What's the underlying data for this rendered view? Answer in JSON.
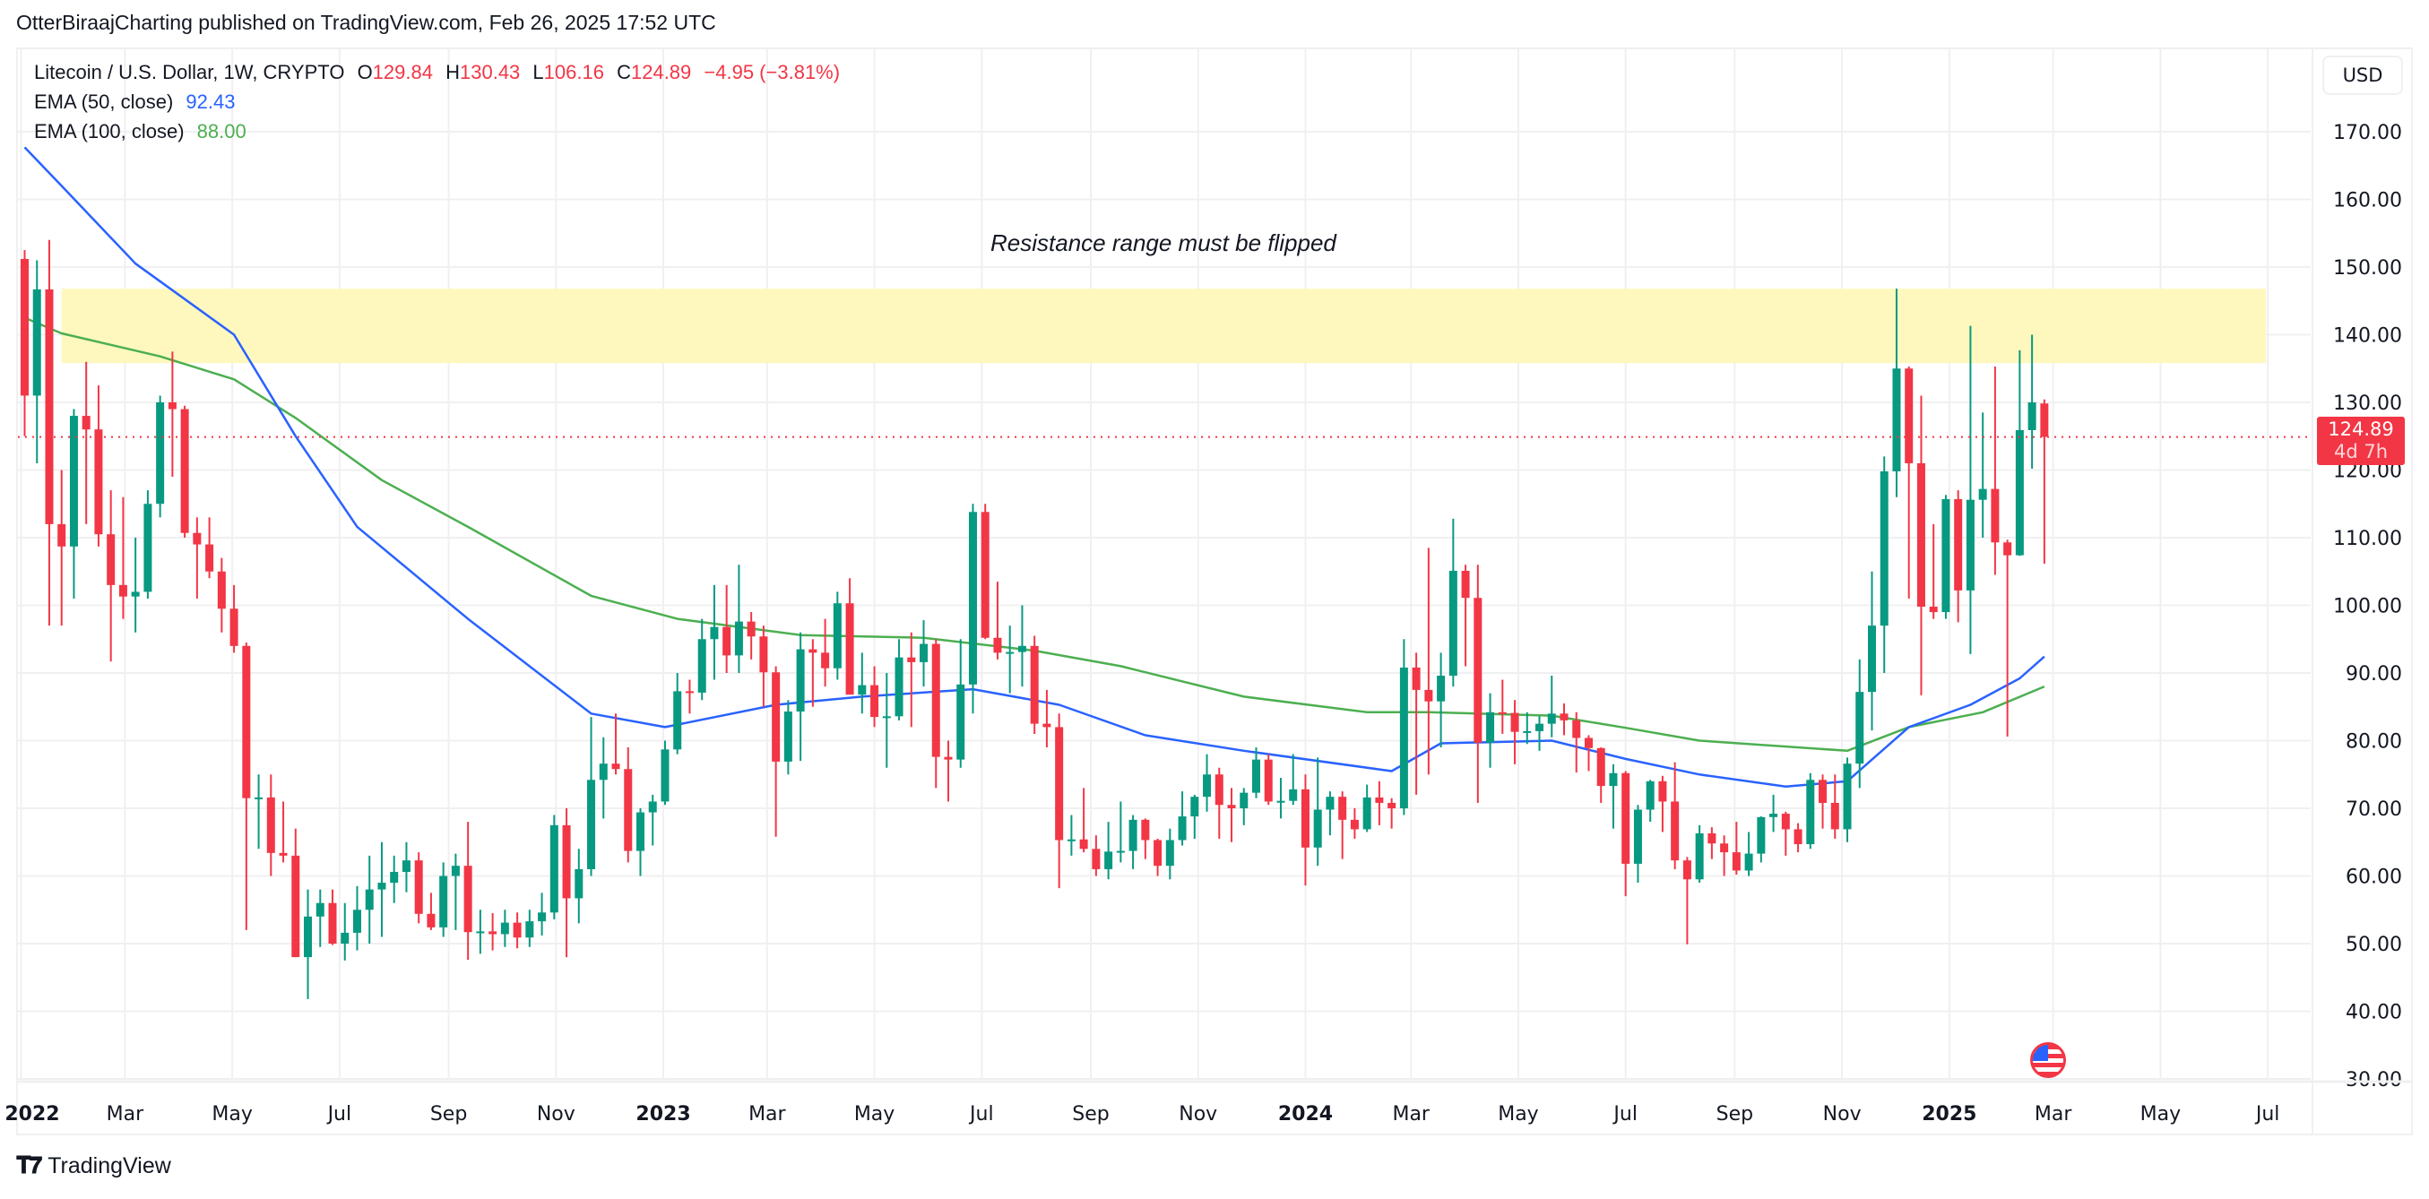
{
  "header": {
    "published": "OtterBiraajCharting published on TradingView.com, Feb 26, 2025 17:52 UTC"
  },
  "legend": {
    "symbol": "Litecoin / U.S. Dollar, 1W, CRYPTO",
    "o_label": "O",
    "o": "129.84",
    "h_label": "H",
    "h": "130.43",
    "l_label": "L",
    "l": "106.16",
    "c_label": "C",
    "c": "124.89",
    "change": "−4.95 (−3.81%)",
    "ema50_label": "EMA (50, close)",
    "ema50": "92.43",
    "ema100_label": "EMA (100, close)",
    "ema100": "88.00"
  },
  "price_axis": {
    "currency": "USD",
    "last_price": "124.89",
    "countdown": "4d 7h"
  },
  "annotation": "Resistance range must be flipped",
  "footer": {
    "brand": "TradingView"
  },
  "colors": {
    "up": "#089981",
    "down": "#F23645",
    "ema50": "#2962FF",
    "ema100": "#4CAF50",
    "zone": "#FFF8BE",
    "grid": "#F0F0F2"
  },
  "icons": {
    "event": "us-flag-economic-event-icon",
    "logo": "tradingview-logo-icon"
  },
  "chart_data": {
    "type": "candlestick",
    "interval": "1W",
    "first_week": "2022-01-03",
    "ylim": [
      30,
      170
    ],
    "y_scale": "linear",
    "grid": true,
    "y_ticks": [
      "30.00",
      "40.00",
      "50.00",
      "60.00",
      "70.00",
      "80.00",
      "90.00",
      "100.00",
      "110.00",
      "120.00",
      "130.00",
      "140.00",
      "150.00",
      "160.00",
      "170.00"
    ],
    "x_ticks": [
      {
        "date": "2022-01-01",
        "label": "2022",
        "bold": true
      },
      {
        "date": "2022-03-01",
        "label": "Mar"
      },
      {
        "date": "2022-05-01",
        "label": "May"
      },
      {
        "date": "2022-07-01",
        "label": "Jul"
      },
      {
        "date": "2022-09-01",
        "label": "Sep"
      },
      {
        "date": "2022-11-01",
        "label": "Nov"
      },
      {
        "date": "2023-01-01",
        "label": "2023",
        "bold": true
      },
      {
        "date": "2023-03-01",
        "label": "Mar"
      },
      {
        "date": "2023-05-01",
        "label": "May"
      },
      {
        "date": "2023-07-01",
        "label": "Jul"
      },
      {
        "date": "2023-09-01",
        "label": "Sep"
      },
      {
        "date": "2023-11-01",
        "label": "Nov"
      },
      {
        "date": "2024-01-01",
        "label": "2024",
        "bold": true
      },
      {
        "date": "2024-03-01",
        "label": "Mar"
      },
      {
        "date": "2024-05-01",
        "label": "May"
      },
      {
        "date": "2024-07-01",
        "label": "Jul"
      },
      {
        "date": "2024-09-01",
        "label": "Sep"
      },
      {
        "date": "2024-11-01",
        "label": "Nov"
      },
      {
        "date": "2025-01-01",
        "label": "2025",
        "bold": true
      },
      {
        "date": "2025-03-01",
        "label": "Mar"
      },
      {
        "date": "2025-05-01",
        "label": "May"
      },
      {
        "date": "2025-07-01",
        "label": "Jul"
      }
    ],
    "candle_fields": [
      "open",
      "high",
      "low",
      "close"
    ],
    "candles": [
      [
        151.2,
        152.5,
        125,
        131
      ],
      [
        131,
        151,
        121,
        146.7
      ],
      [
        146.7,
        154,
        97,
        112
      ],
      [
        112,
        120,
        97,
        108.7
      ],
      [
        108.7,
        129,
        101,
        128
      ],
      [
        128,
        136,
        112,
        126
      ],
      [
        126,
        132.5,
        108.7,
        110.5
      ],
      [
        110.5,
        117,
        91.7,
        103
      ],
      [
        103,
        116,
        98,
        101.3
      ],
      [
        101.3,
        110,
        96,
        102
      ],
      [
        102,
        117,
        101,
        115
      ],
      [
        115,
        131,
        113,
        130
      ],
      [
        130,
        137.5,
        119,
        129
      ],
      [
        129,
        129.5,
        110,
        110.7
      ],
      [
        110.7,
        113,
        101,
        109
      ],
      [
        109,
        113,
        104,
        105
      ],
      [
        105,
        107,
        96,
        99.5
      ],
      [
        99.5,
        103,
        93,
        94
      ],
      [
        94,
        94.5,
        52,
        71.5
      ],
      [
        71.6,
        75,
        64,
        71.6
      ],
      [
        71.6,
        75,
        60,
        63.4
      ],
      [
        63.4,
        71,
        62,
        63
      ],
      [
        63,
        67,
        48,
        48
      ],
      [
        48,
        58,
        41.8,
        54
      ],
      [
        54,
        58,
        49.5,
        56
      ],
      [
        56,
        58,
        49.8,
        50
      ],
      [
        50,
        56,
        47.5,
        51.6
      ],
      [
        51.6,
        58.5,
        49,
        55
      ],
      [
        55,
        63,
        50,
        58
      ],
      [
        58,
        65,
        51,
        59
      ],
      [
        59,
        63,
        56,
        60.6
      ],
      [
        60.6,
        65,
        57.6,
        62.3
      ],
      [
        62.3,
        63.5,
        53,
        54.4
      ],
      [
        54.4,
        57.5,
        52,
        52.4
      ],
      [
        52.4,
        62,
        51,
        60
      ],
      [
        60,
        63.3,
        52,
        61.5
      ],
      [
        61.5,
        68,
        47.6,
        51.7
      ],
      [
        51.7,
        55,
        48.5,
        51.8
      ],
      [
        51.8,
        54.5,
        49,
        51.4
      ],
      [
        51.4,
        55,
        49.5,
        53.1
      ],
      [
        53.1,
        54.6,
        49.3,
        50.9
      ],
      [
        50.9,
        55,
        49.5,
        53.3
      ],
      [
        53.3,
        57.5,
        51.2,
        54.6
      ],
      [
        54.6,
        69,
        53.6,
        67.5
      ],
      [
        67.5,
        70,
        48,
        56.7
      ],
      [
        56.7,
        64,
        53,
        61
      ],
      [
        61,
        83.5,
        60,
        74.2
      ],
      [
        74.2,
        80.5,
        68.5,
        76.6
      ],
      [
        76.6,
        84,
        75,
        75.8
      ],
      [
        75.8,
        79,
        62,
        63.7
      ],
      [
        63.7,
        70,
        60,
        69.4
      ],
      [
        69.4,
        72,
        64.5,
        71
      ],
      [
        71,
        80,
        70.5,
        78.7
      ],
      [
        78.7,
        90,
        78,
        87.3
      ],
      [
        87.3,
        89,
        84,
        87.1
      ],
      [
        87.1,
        98,
        86,
        95
      ],
      [
        95,
        103,
        89,
        96.8
      ],
      [
        96.8,
        103,
        90,
        92.6
      ],
      [
        92.6,
        106,
        90,
        97.6
      ],
      [
        97.6,
        99,
        92,
        95.4
      ],
      [
        95.4,
        97,
        85,
        90.1
      ],
      [
        90.1,
        91,
        65.8,
        76.9
      ],
      [
        76.9,
        86,
        75,
        84.3
      ],
      [
        84.3,
        96,
        77,
        93.5
      ],
      [
        93.5,
        95,
        85,
        93
      ],
      [
        93,
        98,
        88,
        90.7
      ],
      [
        90.7,
        102,
        89,
        100.3
      ],
      [
        100.3,
        104,
        88,
        86.8
      ],
      [
        86.8,
        93,
        84,
        88.2
      ],
      [
        88.2,
        91,
        82,
        83.5
      ],
      [
        83.5,
        90,
        76,
        83.6
      ],
      [
        83.6,
        95,
        83,
        92.3
      ],
      [
        92.3,
        96,
        82,
        91.6
      ],
      [
        91.6,
        97.8,
        88,
        94.3
      ],
      [
        94.3,
        95,
        73,
        77.6
      ],
      [
        77.6,
        80,
        71,
        77.2
      ],
      [
        77.2,
        95,
        76,
        88.3
      ],
      [
        88.3,
        115,
        84,
        113.8
      ],
      [
        113.8,
        115,
        95,
        95.2
      ],
      [
        95.2,
        103.5,
        92,
        93
      ],
      [
        93,
        97,
        87,
        93.1
      ],
      [
        93.1,
        100,
        88,
        94
      ],
      [
        94,
        95.5,
        81,
        82.5
      ],
      [
        82.5,
        87.5,
        79,
        82
      ],
      [
        82,
        84,
        58.2,
        65.3
      ],
      [
        65.3,
        69,
        63,
        65.4
      ],
      [
        65.4,
        73,
        63.5,
        64
      ],
      [
        64,
        66,
        60,
        61
      ],
      [
        61,
        68,
        59.5,
        63.6
      ],
      [
        63.6,
        71,
        62,
        63.7
      ],
      [
        63.7,
        69,
        61,
        68.3
      ],
      [
        68.3,
        68.5,
        62.5,
        65.3
      ],
      [
        65.3,
        65.5,
        60,
        61.5
      ],
      [
        61.5,
        67,
        59.5,
        65.3
      ],
      [
        65.3,
        72.5,
        64.5,
        68.8
      ],
      [
        68.8,
        72,
        65.5,
        71.7
      ],
      [
        71.7,
        78,
        69.5,
        75
      ],
      [
        75,
        76,
        65.5,
        70.5
      ],
      [
        70.5,
        73,
        65,
        70
      ],
      [
        70,
        73,
        67.5,
        72.3
      ],
      [
        72.3,
        79,
        71.5,
        77.2
      ],
      [
        77.2,
        78,
        70.5,
        71
      ],
      [
        71,
        74.5,
        68.5,
        71.1
      ],
      [
        71.1,
        78,
        70.5,
        72.8
      ],
      [
        72.8,
        75,
        58.6,
        64.2
      ],
      [
        64.2,
        77.5,
        61.5,
        69.8
      ],
      [
        69.8,
        72.5,
        66,
        71.7
      ],
      [
        71.7,
        72.5,
        62.5,
        68.3
      ],
      [
        68.3,
        70,
        65.5,
        66.9
      ],
      [
        66.9,
        73.5,
        66.5,
        71.6
      ],
      [
        71.6,
        74,
        67.5,
        70.8
      ],
      [
        70.8,
        71.5,
        67,
        70
      ],
      [
        70,
        95,
        69,
        90.8
      ],
      [
        90.8,
        93,
        72,
        87.5
      ],
      [
        87.5,
        108.5,
        75,
        85.8
      ],
      [
        85.8,
        93,
        79,
        89.6
      ],
      [
        89.6,
        112.8,
        88,
        105.1
      ],
      [
        105.1,
        106,
        91,
        101.1
      ],
      [
        101.1,
        106,
        70.8,
        79.7
      ],
      [
        79.7,
        87,
        76,
        84.2
      ],
      [
        84.2,
        89,
        81,
        84.1
      ],
      [
        84.1,
        86,
        76.5,
        81.3
      ],
      [
        81.3,
        84.2,
        79.5,
        81.4
      ],
      [
        81.4,
        83.6,
        78.5,
        82.5
      ],
      [
        82.5,
        89.6,
        80.5,
        84
      ],
      [
        84,
        85.5,
        80.8,
        83
      ],
      [
        83,
        84.2,
        75.3,
        80.4
      ],
      [
        80.4,
        80.8,
        75.5,
        78.9
      ],
      [
        78.9,
        79,
        70.8,
        73.3
      ],
      [
        73.3,
        76.5,
        67,
        75.2
      ],
      [
        75.2,
        75.5,
        57,
        61.8
      ],
      [
        61.8,
        70.5,
        59,
        69.8
      ],
      [
        69.8,
        74.2,
        68,
        74
      ],
      [
        74,
        74.8,
        66.5,
        71
      ],
      [
        71,
        76.8,
        61,
        62.3
      ],
      [
        62.3,
        62.8,
        49.9,
        59.5
      ],
      [
        59.5,
        67.5,
        59,
        66.3
      ],
      [
        66.3,
        67.2,
        62.5,
        64.8
      ],
      [
        64.8,
        66,
        60,
        63.5
      ],
      [
        63.5,
        68,
        60.2,
        60.8
      ],
      [
        60.8,
        66.5,
        60,
        63.3
      ],
      [
        63.3,
        68.8,
        62,
        68.7
      ],
      [
        68.7,
        72,
        66.5,
        69.2
      ],
      [
        69.2,
        69.5,
        63,
        66.9
      ],
      [
        66.9,
        67.8,
        63.5,
        64.7
      ],
      [
        64.7,
        75.2,
        64,
        74.2
      ],
      [
        74.2,
        75,
        67,
        70.8
      ],
      [
        70.8,
        75,
        65.5,
        66.9
      ],
      [
        66.9,
        77.5,
        65,
        76.6
      ],
      [
        76.6,
        92,
        73,
        87.2
      ],
      [
        87.2,
        105,
        81.5,
        97
      ],
      [
        97,
        122,
        90,
        119.8
      ],
      [
        119.8,
        146.8,
        116,
        135
      ],
      [
        135,
        135.3,
        101,
        121
      ],
      [
        121,
        131,
        86.7,
        99.8
      ],
      [
        99.8,
        112,
        98,
        99
      ],
      [
        99,
        116.3,
        98,
        115.7
      ],
      [
        115.7,
        117,
        97.5,
        102.2
      ],
      [
        102.2,
        141.3,
        92.8,
        115.6
      ],
      [
        115.6,
        128.5,
        110,
        117.2
      ],
      [
        117.2,
        135.3,
        104.5,
        109.3
      ],
      [
        109.3,
        109.7,
        80.6,
        107.4
      ],
      [
        107.4,
        137.7,
        107.3,
        125.9
      ],
      [
        125.9,
        140,
        120.2,
        130
      ],
      [
        129.84,
        130.43,
        106.16,
        124.89
      ]
    ],
    "ema50_points": [
      [
        0,
        167.7
      ],
      [
        3,
        162
      ],
      [
        9,
        150.5
      ],
      [
        17,
        140
      ],
      [
        22,
        125
      ],
      [
        27,
        111.6
      ],
      [
        36,
        98
      ],
      [
        46,
        84
      ],
      [
        52,
        82
      ],
      [
        61,
        85.3
      ],
      [
        68,
        86.5
      ],
      [
        77,
        87.6
      ],
      [
        84,
        85.3
      ],
      [
        91,
        80.8
      ],
      [
        99,
        78.5
      ],
      [
        111,
        75.5
      ],
      [
        115,
        79.6
      ],
      [
        124,
        80
      ],
      [
        130,
        77.3
      ],
      [
        136,
        75
      ],
      [
        143,
        73.2
      ],
      [
        148,
        74
      ],
      [
        153,
        82
      ],
      [
        158,
        85.3
      ],
      [
        162,
        89.2
      ],
      [
        164,
        92.43
      ]
    ],
    "ema100_points": [
      [
        0,
        142.5
      ],
      [
        3,
        140.2
      ],
      [
        11,
        136.8
      ],
      [
        17,
        133.4
      ],
      [
        22,
        127.7
      ],
      [
        29,
        118.5
      ],
      [
        36,
        111.6
      ],
      [
        46,
        101.4
      ],
      [
        53,
        98
      ],
      [
        63,
        95.6
      ],
      [
        73,
        95.2
      ],
      [
        82,
        93.3
      ],
      [
        89,
        91
      ],
      [
        99,
        86.5
      ],
      [
        109,
        84.2
      ],
      [
        114,
        84.2
      ],
      [
        124,
        83.7
      ],
      [
        130,
        81.9
      ],
      [
        136,
        80
      ],
      [
        148,
        78.5
      ],
      [
        153,
        82
      ],
      [
        159,
        84.2
      ],
      [
        164,
        88
      ]
    ],
    "resistance_zone": {
      "low": 135.8,
      "high": 146.8,
      "from_week": "2022-01-24",
      "to_week": "2025-06-30"
    },
    "last_price": 124.89
  }
}
